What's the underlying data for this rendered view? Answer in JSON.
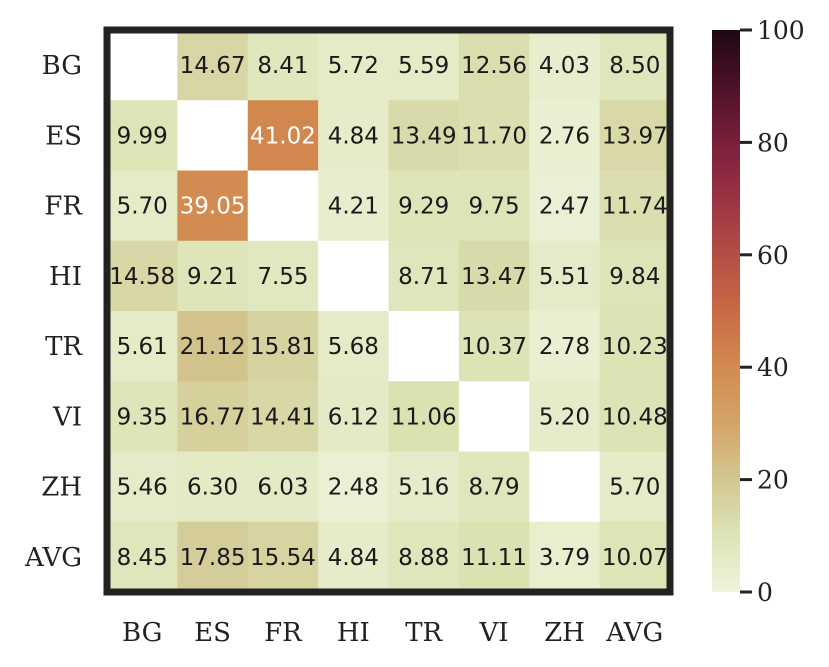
{
  "chart_data": {
    "type": "heatmap",
    "x_categories": [
      "BG",
      "ES",
      "FR",
      "HI",
      "TR",
      "VI",
      "ZH",
      "AVG"
    ],
    "y_categories": [
      "BG",
      "ES",
      "FR",
      "HI",
      "TR",
      "VI",
      "ZH",
      "AVG"
    ],
    "values": [
      [
        null,
        14.67,
        8.41,
        5.72,
        5.59,
        12.56,
        4.03,
        8.5
      ],
      [
        9.99,
        null,
        41.02,
        4.84,
        13.49,
        11.7,
        2.76,
        13.97
      ],
      [
        5.7,
        39.05,
        null,
        4.21,
        9.29,
        9.75,
        2.47,
        11.74
      ],
      [
        14.58,
        9.21,
        7.55,
        null,
        8.71,
        13.47,
        5.51,
        9.84
      ],
      [
        5.61,
        21.12,
        15.81,
        5.68,
        null,
        10.37,
        2.78,
        10.23
      ],
      [
        9.35,
        16.77,
        14.41,
        6.12,
        11.06,
        null,
        5.2,
        10.48
      ],
      [
        5.46,
        6.3,
        6.03,
        2.48,
        5.16,
        8.79,
        null,
        5.7
      ],
      [
        8.45,
        17.85,
        15.54,
        4.84,
        8.88,
        11.11,
        3.79,
        10.07
      ]
    ],
    "value_format": "2-decimals",
    "colorbar": {
      "range": [
        0,
        100
      ],
      "ticks": [
        0,
        20,
        40,
        60,
        80,
        100
      ],
      "tick_labels": [
        "0",
        "20",
        "40",
        "60",
        "80",
        "100"
      ],
      "colormap_stops": [
        {
          "value": 0,
          "color": "#eef4dd"
        },
        {
          "value": 10,
          "color": "#dde4b6"
        },
        {
          "value": 20,
          "color": "#d2c791"
        },
        {
          "value": 30,
          "color": "#d4a467"
        },
        {
          "value": 40,
          "color": "#d28a4f"
        },
        {
          "value": 50,
          "color": "#c86a45"
        },
        {
          "value": 60,
          "color": "#b44e45"
        },
        {
          "value": 70,
          "color": "#993343"
        },
        {
          "value": 80,
          "color": "#7a1f3a"
        },
        {
          "value": 90,
          "color": "#4d1129"
        },
        {
          "value": 100,
          "color": "#1e0813"
        }
      ]
    },
    "missing_cell_color": "#ffffff",
    "frame_color": "#222222",
    "label_light_color": "#ffffff",
    "label_dark_color": "#1a1a1a",
    "label_light_threshold": 30
  }
}
